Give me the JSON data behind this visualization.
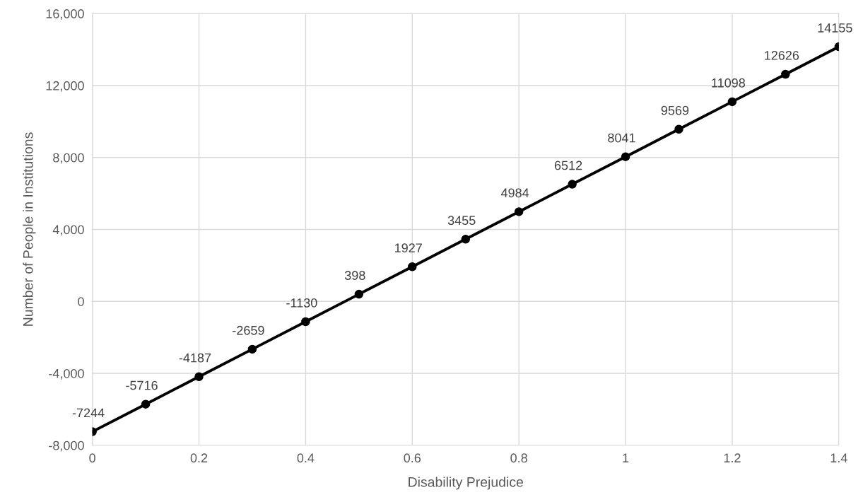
{
  "chart_data": {
    "type": "line",
    "xlabel": "Disability Prejudice",
    "ylabel": "Number of People in Institutions",
    "x": [
      0,
      0.1,
      0.2,
      0.3,
      0.4,
      0.5,
      0.6,
      0.7,
      0.8,
      0.9,
      1,
      1.1,
      1.2,
      1.3,
      1.4
    ],
    "series": [
      {
        "color": "#000000",
        "values": [
          -7244,
          -5716,
          -4187,
          -2659,
          -1130,
          398,
          1927,
          3455,
          4984,
          6512,
          8041,
          9569,
          11098,
          12626,
          14155
        ]
      }
    ],
    "xlim": [
      0,
      1.4
    ],
    "xticks": [
      0,
      0.2,
      0.4,
      0.6,
      0.8,
      1,
      1.2,
      1.4
    ],
    "ylim": [
      -8000,
      16000
    ],
    "yticks": [
      {
        "value": -8000,
        "label": "-8,000"
      },
      {
        "value": -4000,
        "label": "-4,000"
      },
      0,
      {
        "value": 4000,
        "label": "4,000"
      },
      {
        "value": 8000,
        "label": "8,000"
      },
      {
        "value": 12000,
        "label": "12,000"
      },
      {
        "value": 16000,
        "label": "16,000"
      }
    ],
    "grid": true,
    "marker": "circle",
    "line_style": "solid",
    "data_labels": true
  }
}
